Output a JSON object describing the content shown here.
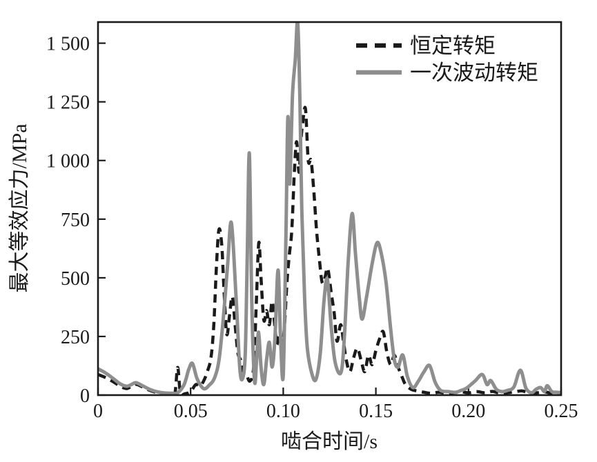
{
  "figure": {
    "background": "#ffffff"
  },
  "chart_data": {
    "type": "line",
    "title": "",
    "xlabel": "啮合时间/s",
    "ylabel": "最大等效应力/MPa",
    "xlim": [
      0,
      0.25
    ],
    "ylim": [
      0,
      1590
    ],
    "grid": false,
    "legend_position": "upper-right-inside",
    "axis_color": "#1a1a1a",
    "x_ticks": [
      {
        "value": 0,
        "label": "0"
      },
      {
        "value": 0.05,
        "label": "0.05"
      },
      {
        "value": 0.1,
        "label": "0.10"
      },
      {
        "value": 0.15,
        "label": "0.15"
      },
      {
        "value": 0.2,
        "label": "0.20"
      },
      {
        "value": 0.25,
        "label": "0.25"
      }
    ],
    "y_ticks": [
      {
        "value": 0,
        "label": "0"
      },
      {
        "value": 250,
        "label": "250"
      },
      {
        "value": 500,
        "label": "500"
      },
      {
        "value": 750,
        "label": "750"
      },
      {
        "value": 1000,
        "label": "1 000"
      },
      {
        "value": 1250,
        "label": "1 250"
      },
      {
        "value": 1500,
        "label": "1 500"
      }
    ],
    "series": [
      {
        "name": "恒定转矩",
        "style": "dashed",
        "color": "#1a1a1a",
        "points": [
          [
            0,
            88
          ],
          [
            0.004,
            75
          ],
          [
            0.008,
            58
          ],
          [
            0.012,
            38
          ],
          [
            0.0155,
            28
          ],
          [
            0.018,
            38
          ],
          [
            0.0205,
            46
          ],
          [
            0.024,
            35
          ],
          [
            0.028,
            20
          ],
          [
            0.032,
            10
          ],
          [
            0.036,
            5
          ],
          [
            0.039,
            4
          ],
          [
            0.0415,
            8
          ],
          [
            0.043,
            118
          ],
          [
            0.0445,
            10
          ],
          [
            0.047,
            6
          ],
          [
            0.05,
            15
          ],
          [
            0.0528,
            45
          ],
          [
            0.055,
            38
          ],
          [
            0.057,
            60
          ],
          [
            0.059,
            100
          ],
          [
            0.061,
            160
          ],
          [
            0.0625,
            300
          ],
          [
            0.064,
            560
          ],
          [
            0.0653,
            706
          ],
          [
            0.0668,
            640
          ],
          [
            0.068,
            450
          ],
          [
            0.0695,
            260
          ],
          [
            0.071,
            340
          ],
          [
            0.0725,
            420
          ],
          [
            0.074,
            300
          ],
          [
            0.0755,
            180
          ],
          [
            0.077,
            150
          ],
          [
            0.0785,
            100
          ],
          [
            0.08,
            90
          ],
          [
            0.082,
            60
          ],
          [
            0.084,
            120
          ],
          [
            0.0855,
            400
          ],
          [
            0.0868,
            650
          ],
          [
            0.088,
            500
          ],
          [
            0.0895,
            320
          ],
          [
            0.091,
            360
          ],
          [
            0.0925,
            300
          ],
          [
            0.094,
            400
          ],
          [
            0.0955,
            290
          ],
          [
            0.0965,
            215
          ],
          [
            0.098,
            260
          ],
          [
            0.0995,
            220
          ],
          [
            0.1007,
            300
          ],
          [
            0.102,
            480
          ],
          [
            0.1033,
            600
          ],
          [
            0.1046,
            700
          ],
          [
            0.106,
            950
          ],
          [
            0.1072,
            1080
          ],
          [
            0.1085,
            950
          ],
          [
            0.1095,
            1080
          ],
          [
            0.1105,
            1160
          ],
          [
            0.112,
            1220
          ],
          [
            0.1135,
            1000
          ],
          [
            0.115,
            1000
          ],
          [
            0.1165,
            870
          ],
          [
            0.118,
            700
          ],
          [
            0.1195,
            580
          ],
          [
            0.121,
            480
          ],
          [
            0.1225,
            500
          ],
          [
            0.124,
            540
          ],
          [
            0.126,
            430
          ],
          [
            0.1275,
            350
          ],
          [
            0.129,
            230
          ],
          [
            0.131,
            300
          ],
          [
            0.1325,
            230
          ],
          [
            0.134,
            150
          ],
          [
            0.136,
            100
          ],
          [
            0.138,
            160
          ],
          [
            0.14,
            200
          ],
          [
            0.142,
            150
          ],
          [
            0.144,
            100
          ],
          [
            0.146,
            170
          ],
          [
            0.148,
            130
          ],
          [
            0.15,
            190
          ],
          [
            0.152,
            240
          ],
          [
            0.154,
            270
          ],
          [
            0.156,
            180
          ],
          [
            0.158,
            130
          ],
          [
            0.16,
            170
          ],
          [
            0.162,
            120
          ],
          [
            0.164,
            80
          ],
          [
            0.166,
            45
          ],
          [
            0.169,
            25
          ],
          [
            0.172,
            18
          ],
          [
            0.176,
            12
          ],
          [
            0.18,
            8
          ],
          [
            0.184,
            12
          ],
          [
            0.188,
            8
          ],
          [
            0.192,
            10
          ],
          [
            0.196,
            14
          ],
          [
            0.2,
            10
          ],
          [
            0.2045,
            15
          ],
          [
            0.209,
            10
          ],
          [
            0.213,
            16
          ],
          [
            0.217,
            8
          ],
          [
            0.221,
            10
          ],
          [
            0.225,
            14
          ],
          [
            0.229,
            18
          ],
          [
            0.233,
            8
          ],
          [
            0.237,
            10
          ],
          [
            0.241,
            14
          ],
          [
            0.245,
            8
          ],
          [
            0.25,
            12
          ]
        ]
      },
      {
        "name": "一次波动转矩",
        "style": "solid",
        "color": "#8e8e8e",
        "points": [
          [
            0,
            112
          ],
          [
            0.004,
            95
          ],
          [
            0.008,
            72
          ],
          [
            0.012,
            48
          ],
          [
            0.0155,
            38
          ],
          [
            0.018,
            45
          ],
          [
            0.0205,
            53
          ],
          [
            0.024,
            40
          ],
          [
            0.028,
            24
          ],
          [
            0.032,
            14
          ],
          [
            0.036,
            9
          ],
          [
            0.04,
            8
          ],
          [
            0.043,
            10
          ],
          [
            0.0465,
            45
          ],
          [
            0.049,
            110
          ],
          [
            0.051,
            135
          ],
          [
            0.0535,
            70
          ],
          [
            0.057,
            28
          ],
          [
            0.06,
            42
          ],
          [
            0.063,
            75
          ],
          [
            0.0655,
            160
          ],
          [
            0.068,
            360
          ],
          [
            0.07,
            560
          ],
          [
            0.072,
            735
          ],
          [
            0.0745,
            420
          ],
          [
            0.0765,
            120
          ],
          [
            0.078,
            70
          ],
          [
            0.0795,
            180
          ],
          [
            0.0806,
            600
          ],
          [
            0.0817,
            1030
          ],
          [
            0.083,
            400
          ],
          [
            0.0845,
            60
          ],
          [
            0.0856,
            150
          ],
          [
            0.0867,
            268
          ],
          [
            0.088,
            120
          ],
          [
            0.0895,
            45
          ],
          [
            0.091,
            150
          ],
          [
            0.0925,
            225
          ],
          [
            0.094,
            120
          ],
          [
            0.0955,
            240
          ],
          [
            0.0972,
            533
          ],
          [
            0.0985,
            250
          ],
          [
            0.1,
            85
          ],
          [
            0.1015,
            700
          ],
          [
            0.1025,
            1185
          ],
          [
            0.1035,
            900
          ],
          [
            0.105,
            1280
          ],
          [
            0.1065,
            1430
          ],
          [
            0.1078,
            1590
          ],
          [
            0.109,
            1250
          ],
          [
            0.11,
            800
          ],
          [
            0.1115,
            420
          ],
          [
            0.113,
            200
          ],
          [
            0.1155,
            90
          ],
          [
            0.1177,
            68
          ],
          [
            0.12,
            180
          ],
          [
            0.122,
            400
          ],
          [
            0.1238,
            494
          ],
          [
            0.1258,
            300
          ],
          [
            0.128,
            140
          ],
          [
            0.1312,
            97
          ],
          [
            0.133,
            250
          ],
          [
            0.135,
            560
          ],
          [
            0.1372,
            774
          ],
          [
            0.139,
            600
          ],
          [
            0.141,
            420
          ],
          [
            0.1426,
            324
          ],
          [
            0.145,
            420
          ],
          [
            0.148,
            560
          ],
          [
            0.1507,
            650
          ],
          [
            0.153,
            600
          ],
          [
            0.1555,
            480
          ],
          [
            0.158,
            280
          ],
          [
            0.16,
            150
          ],
          [
            0.162,
            120
          ],
          [
            0.1645,
            171
          ],
          [
            0.167,
            80
          ],
          [
            0.17,
            32
          ],
          [
            0.173,
            60
          ],
          [
            0.176,
            100
          ],
          [
            0.179,
            126
          ],
          [
            0.182,
            55
          ],
          [
            0.185,
            20
          ],
          [
            0.189,
            15
          ],
          [
            0.193,
            12
          ],
          [
            0.196,
            20
          ],
          [
            0.199,
            30
          ],
          [
            0.2035,
            60
          ],
          [
            0.2074,
            88
          ],
          [
            0.21,
            45
          ],
          [
            0.212,
            62
          ],
          [
            0.215,
            25
          ],
          [
            0.218,
            15
          ],
          [
            0.221,
            20
          ],
          [
            0.2245,
            35
          ],
          [
            0.228,
            106
          ],
          [
            0.231,
            30
          ],
          [
            0.234,
            10
          ],
          [
            0.2365,
            25
          ],
          [
            0.239,
            32
          ],
          [
            0.241,
            15
          ],
          [
            0.2425,
            40
          ],
          [
            0.245,
            15
          ],
          [
            0.2475,
            12
          ],
          [
            0.25,
            10
          ]
        ]
      }
    ]
  }
}
